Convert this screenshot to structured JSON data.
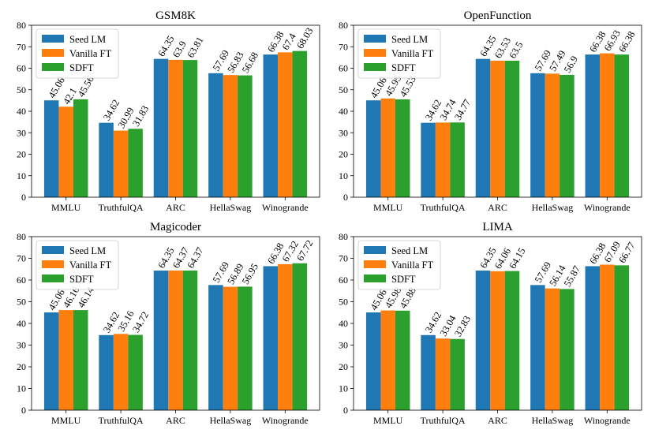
{
  "chart_data": [
    {
      "type": "bar",
      "title": "GSM8K",
      "categories": [
        "MMLU",
        "TruthfulQA",
        "ARC",
        "HellaSwag",
        "Winogrande"
      ],
      "series": [
        {
          "name": "Seed LM",
          "values": [
            45.06,
            34.62,
            64.35,
            57.69,
            66.38
          ],
          "labels": [
            "45.06",
            "34.62",
            "64.35",
            "57.69",
            "66.38"
          ]
        },
        {
          "name": "Vanilla FT",
          "values": [
            42.1,
            30.99,
            63.9,
            56.83,
            67.4
          ],
          "labels": [
            "42.1",
            "30.99",
            "63.9",
            "56.83",
            "67.4"
          ]
        },
        {
          "name": "SDFT",
          "values": [
            45.56,
            31.83,
            63.81,
            56.68,
            68.03
          ],
          "labels": [
            "45.56",
            "31.83",
            "63.81",
            "56.68",
            "68.03"
          ]
        }
      ],
      "ylim": [
        0,
        80
      ],
      "yticks": [
        "0",
        "10",
        "20",
        "30",
        "40",
        "50",
        "60",
        "70",
        "80"
      ],
      "legend": "top-left"
    },
    {
      "type": "bar",
      "title": "OpenFunction",
      "categories": [
        "MMLU",
        "TruthfulQA",
        "ARC",
        "HellaSwag",
        "Winogrande"
      ],
      "series": [
        {
          "name": "Seed LM",
          "values": [
            45.06,
            34.62,
            64.35,
            57.69,
            66.38
          ],
          "labels": [
            "45.06",
            "34.62",
            "64.35",
            "57.69",
            "66.38"
          ]
        },
        {
          "name": "Vanilla FT",
          "values": [
            45.95,
            34.74,
            63.53,
            57.49,
            66.93
          ],
          "labels": [
            "45.95",
            "34.74",
            "63.53",
            "57.49",
            "66.93"
          ]
        },
        {
          "name": "SDFT",
          "values": [
            45.53,
            34.77,
            63.5,
            56.9,
            66.38
          ],
          "labels": [
            "45.53",
            "34.77",
            "63.5",
            "56.9",
            "66.38"
          ]
        }
      ],
      "ylim": [
        0,
        80
      ],
      "yticks": [
        "0",
        "10",
        "20",
        "30",
        "40",
        "50",
        "60",
        "70",
        "80"
      ],
      "legend": "top-left"
    },
    {
      "type": "bar",
      "title": "Magicoder",
      "categories": [
        "MMLU",
        "TruthfulQA",
        "ARC",
        "HellaSwag",
        "Winogrande"
      ],
      "series": [
        {
          "name": "Seed LM",
          "values": [
            45.06,
            34.62,
            64.35,
            57.69,
            66.38
          ],
          "labels": [
            "45.06",
            "34.62",
            "64.35",
            "57.69",
            "66.38"
          ]
        },
        {
          "name": "Vanilla FT",
          "values": [
            46.16,
            35.16,
            64.37,
            56.89,
            67.32
          ],
          "labels": [
            "46.16",
            "35.16",
            "64.37",
            "56.89",
            "67.32"
          ]
        },
        {
          "name": "SDFT",
          "values": [
            46.14,
            34.72,
            64.37,
            56.95,
            67.72
          ],
          "labels": [
            "46.14",
            "34.72",
            "64.37",
            "56.95",
            "67.72"
          ]
        }
      ],
      "ylim": [
        0,
        80
      ],
      "yticks": [
        "0",
        "10",
        "20",
        "30",
        "40",
        "50",
        "60",
        "70",
        "80"
      ],
      "legend": "top-left"
    },
    {
      "type": "bar",
      "title": "LIMA",
      "categories": [
        "MMLU",
        "TruthfulQA",
        "ARC",
        "HellaSwag",
        "Winogrande"
      ],
      "series": [
        {
          "name": "Seed LM",
          "values": [
            45.06,
            34.62,
            64.35,
            57.69,
            66.38
          ],
          "labels": [
            "45.06",
            "34.62",
            "64.35",
            "57.69",
            "66.38"
          ]
        },
        {
          "name": "Vanilla FT",
          "values": [
            45.98,
            33.04,
            64.06,
            56.14,
            67.09
          ],
          "labels": [
            "45.98",
            "33.04",
            "64.06",
            "56.14",
            "67.09"
          ]
        },
        {
          "name": "SDFT",
          "values": [
            45.88,
            32.83,
            64.15,
            55.87,
            66.77
          ],
          "labels": [
            "45.88",
            "32.83",
            "64.15",
            "55.87",
            "66.77"
          ]
        }
      ],
      "ylim": [
        0,
        80
      ],
      "yticks": [
        "0",
        "10",
        "20",
        "30",
        "40",
        "50",
        "60",
        "70",
        "80"
      ],
      "legend": "top-left"
    }
  ],
  "colors": {
    "Seed LM": "#1f77b4",
    "Vanilla FT": "#ff7f0e",
    "SDFT": "#2ca02c"
  }
}
